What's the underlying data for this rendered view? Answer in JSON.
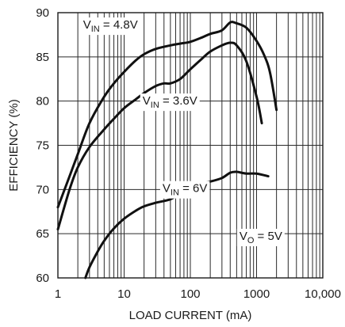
{
  "chart_data": {
    "type": "line",
    "xscale": "log",
    "xlim": [
      1,
      10000
    ],
    "ylim": [
      60,
      90
    ],
    "xlabel": "LOAD CURRENT (mA)",
    "ylabel": "EFFICIENCY (%)",
    "grid": true,
    "xticks": [
      "1",
      "10",
      "100",
      "1000",
      "10,000"
    ],
    "yticks": [
      "60",
      "65",
      "70",
      "75",
      "80",
      "85",
      "90"
    ],
    "series": [
      {
        "annotation": {
          "base": "V",
          "sub": "IN",
          "rest": " = 4.8V"
        },
        "x": [
          1,
          1.5,
          2,
          3,
          5,
          7,
          10,
          15,
          20,
          30,
          50,
          70,
          100,
          150,
          200,
          300,
          400,
          500,
          700,
          1000,
          1300,
          1600,
          2000
        ],
        "y": [
          68,
          71.5,
          74,
          77.5,
          80.5,
          82,
          83.3,
          84.6,
          85.3,
          85.9,
          86.3,
          86.5,
          86.7,
          87.2,
          87.6,
          88,
          88.9,
          88.8,
          88.3,
          86.8,
          85.2,
          83.2,
          79
        ]
      },
      {
        "annotation": {
          "base": "V",
          "sub": "IN",
          "rest": " = 3.6V"
        },
        "x": [
          1,
          1.5,
          2,
          3,
          5,
          7,
          10,
          15,
          20,
          30,
          40,
          50,
          70,
          100,
          150,
          200,
          300,
          400,
          500,
          700,
          1000,
          1200
        ],
        "y": [
          65.5,
          70,
          72.5,
          74.8,
          76.8,
          78,
          79.2,
          80.2,
          80.9,
          81.7,
          82,
          82,
          82.5,
          83.6,
          84.8,
          85.6,
          86.3,
          86.6,
          86.3,
          84.5,
          80.5,
          77.5
        ]
      },
      {
        "annotation": {
          "base": "V",
          "sub": "IN",
          "rest": " = 6V"
        },
        "x": [
          2.6,
          3,
          4,
          5,
          7,
          10,
          15,
          20,
          30,
          50,
          70,
          100,
          150,
          200,
          300,
          400,
          500,
          700,
          1000,
          1500
        ],
        "y": [
          60,
          61.2,
          63,
          64.2,
          65.6,
          66.7,
          67.6,
          68.1,
          68.5,
          68.9,
          69.6,
          70.4,
          70.7,
          70.9,
          71.3,
          71.9,
          72,
          71.8,
          71.8,
          71.5
        ]
      }
    ],
    "condition": {
      "base": "V",
      "sub": "O",
      "rest": " = 5V"
    }
  }
}
